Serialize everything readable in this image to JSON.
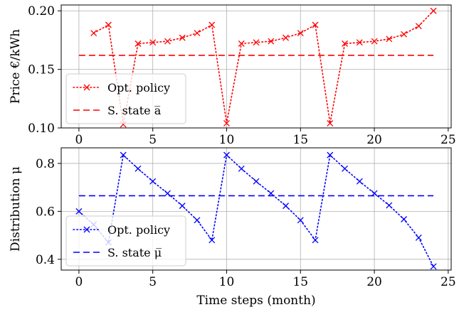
{
  "chart_data": [
    {
      "type": "line",
      "title": "",
      "xlabel": "",
      "ylabel": "Price €/kWh",
      "xlim": [
        -1.2,
        25.2
      ],
      "ylim": [
        0.1,
        0.205
      ],
      "xticks": [
        0,
        5,
        10,
        15,
        20,
        25
      ],
      "yticks": [
        0.1,
        0.15,
        0.2
      ],
      "ytick_labels": [
        "0.10",
        "0.15",
        "0.20"
      ],
      "grid": true,
      "legend_position": "lower-left",
      "series": [
        {
          "name": "Opt. policy",
          "color": "#ff0000",
          "style": "dotted",
          "marker": "x",
          "x": [
            1,
            2,
            3,
            4,
            5,
            6,
            7,
            8,
            9,
            10,
            11,
            12,
            13,
            14,
            15,
            16,
            17,
            18,
            19,
            20,
            21,
            22,
            23,
            24
          ],
          "y": [
            0.181,
            0.188,
            0.103,
            0.172,
            0.173,
            0.174,
            0.177,
            0.181,
            0.188,
            0.104,
            0.172,
            0.173,
            0.174,
            0.177,
            0.181,
            0.188,
            0.104,
            0.172,
            0.173,
            0.174,
            0.176,
            0.18,
            0.187,
            0.2
          ]
        },
        {
          "name": "S. state a̅",
          "color": "#ff0000",
          "style": "dashed",
          "x": [
            0,
            24
          ],
          "y": [
            0.162,
            0.162
          ]
        }
      ]
    },
    {
      "type": "line",
      "title": "",
      "xlabel": "Time steps (month)",
      "ylabel": "Distribution μ",
      "xlim": [
        -1.2,
        25.2
      ],
      "ylim": [
        0.355,
        0.865
      ],
      "xticks": [
        0,
        5,
        10,
        15,
        20,
        25
      ],
      "yticks": [
        0.4,
        0.6,
        0.8
      ],
      "ytick_labels": [
        "0.4",
        "0.6",
        "0.8"
      ],
      "grid": true,
      "legend_position": "lower-left",
      "series": [
        {
          "name": "Opt. policy",
          "color": "#0000ff",
          "style": "dotted",
          "marker": "x",
          "x": [
            0,
            1,
            2,
            3,
            4,
            5,
            6,
            7,
            8,
            9,
            10,
            11,
            12,
            13,
            14,
            15,
            16,
            17,
            18,
            19,
            20,
            21,
            22,
            23,
            24
          ],
          "y": [
            0.6,
            0.545,
            0.47,
            0.835,
            0.778,
            0.725,
            0.675,
            0.623,
            0.563,
            0.48,
            0.835,
            0.778,
            0.725,
            0.675,
            0.623,
            0.563,
            0.48,
            0.835,
            0.778,
            0.725,
            0.675,
            0.625,
            0.567,
            0.49,
            0.37
          ]
        },
        {
          "name": "S. state μ̅",
          "color": "#0000ff",
          "style": "dashed",
          "x": [
            0,
            24
          ],
          "y": [
            0.665,
            0.665
          ]
        }
      ]
    }
  ]
}
